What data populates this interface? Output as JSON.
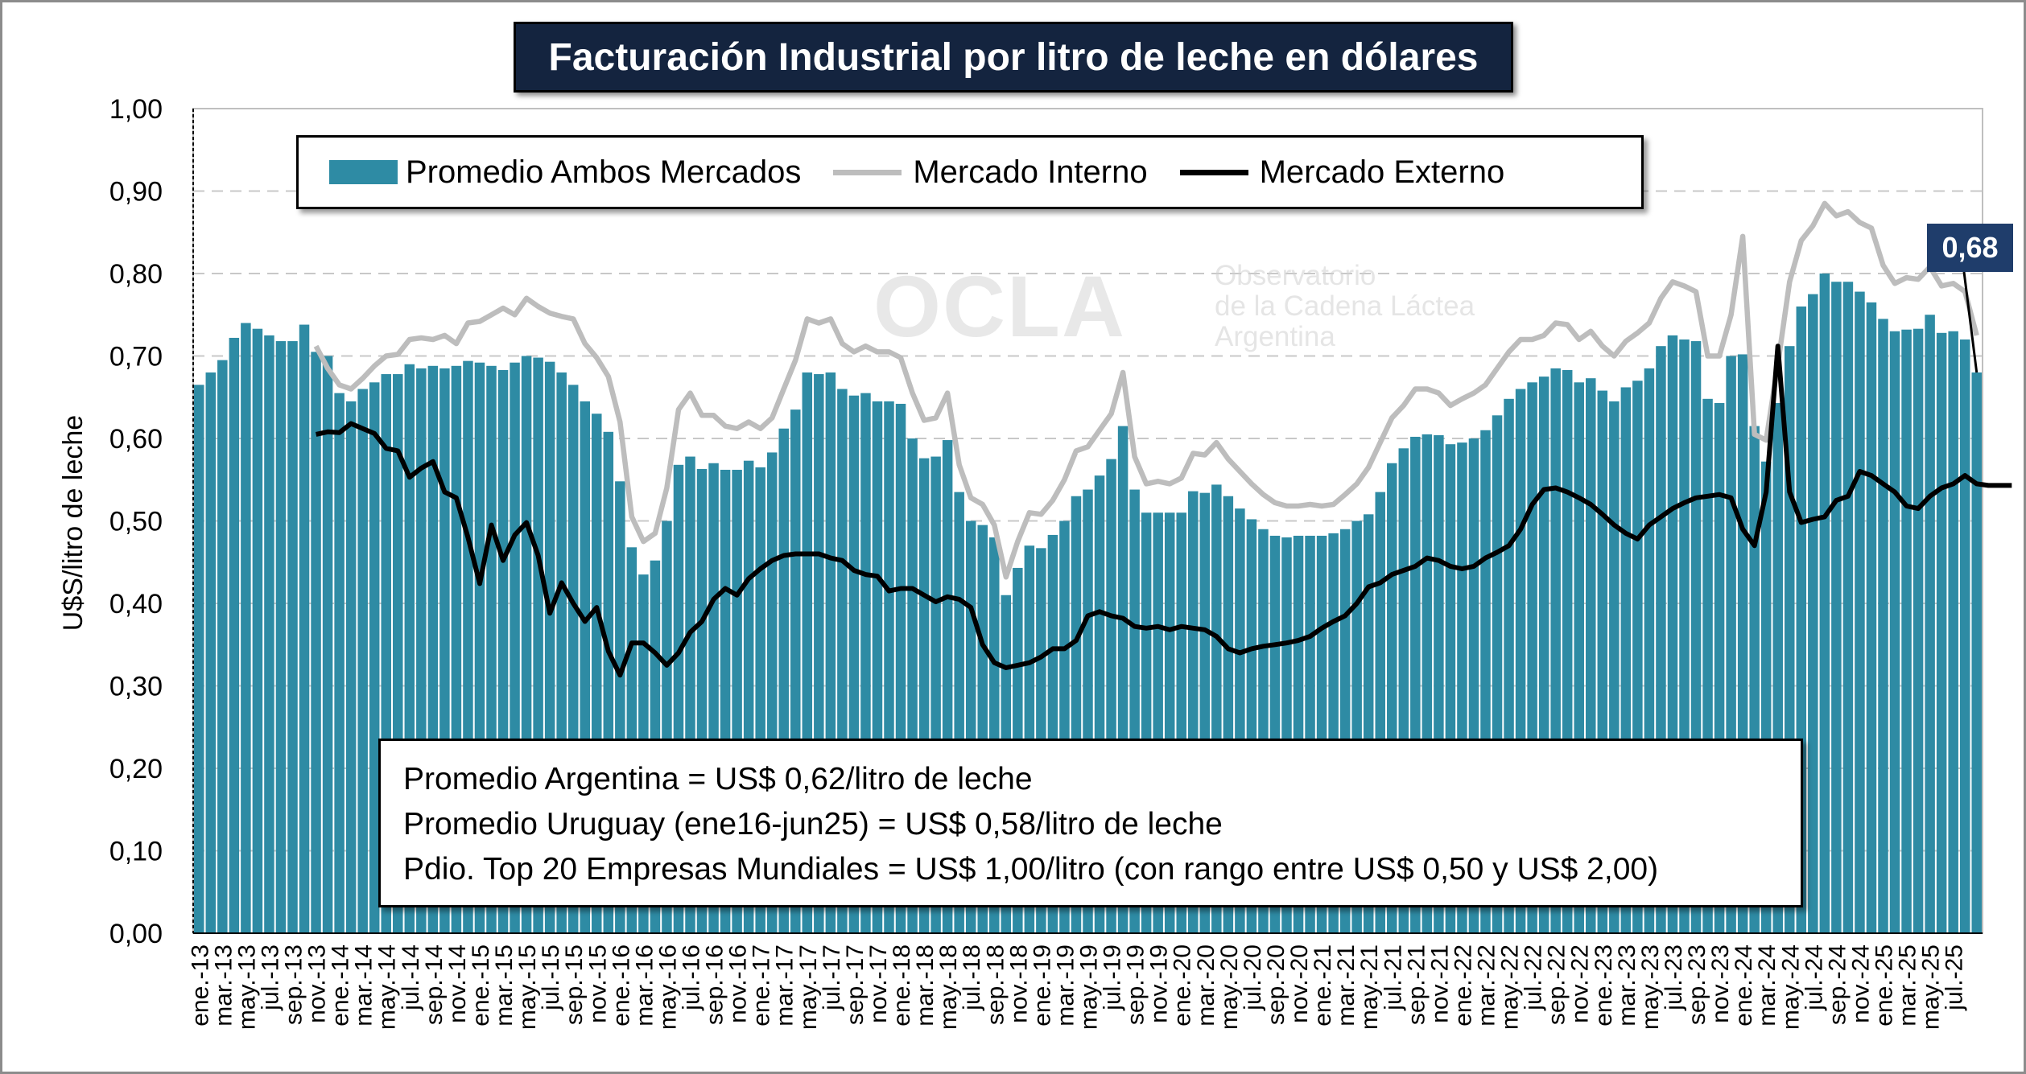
{
  "chart_data": {
    "type": "bar",
    "title": "Facturación Industrial por litro de leche en dólares",
    "ylabel": "U$S/litro de leche",
    "xlabel": "",
    "ylim": [
      0,
      1
    ],
    "yticks": [
      "0,00",
      "0,10",
      "0,20",
      "0,30",
      "0,40",
      "0,50",
      "0,60",
      "0,70",
      "0,80",
      "0,90",
      "1,00"
    ],
    "grid": "horizontal-dashed",
    "legend_position": "top",
    "start_month": "ene.-13",
    "x_tick_labels": [
      "ene.-13",
      "mar.-13",
      "may.-13",
      "jul.-13",
      "sep.-13",
      "nov.-13",
      "ene.-14",
      "mar.-14",
      "may.-14",
      "jul.-14",
      "sep.-14",
      "nov.-14",
      "ene.-15",
      "mar.-15",
      "may.-15",
      "jul.-15",
      "sep.-15",
      "nov.-15",
      "ene.-16",
      "mar.-16",
      "may.-16",
      "jul.-16",
      "sep.-16",
      "nov.-16",
      "ene.-17",
      "mar.-17",
      "may.-17",
      "jul.-17",
      "sep.-17",
      "nov.-17",
      "ene.-18",
      "mar.-18",
      "may.-18",
      "jul.-18",
      "sep.-18",
      "nov.-18",
      "ene.-19",
      "mar.-19",
      "may.-19",
      "jul.-19",
      "sep.-19",
      "nov.-19",
      "ene.-20",
      "mar.-20",
      "may.-20",
      "jul.-20",
      "sep.-20",
      "nov.-20",
      "ene.-21",
      "mar.-21",
      "may.-21",
      "jul.-21",
      "sep.-21",
      "nov.-21",
      "ene.-22",
      "mar.-22",
      "may.-22",
      "jul.-22",
      "sep.-22",
      "nov.-22",
      "ene.-23",
      "mar.-23",
      "may.-23",
      "jul.-23",
      "sep.-23",
      "nov.-23",
      "ene.-24",
      "mar.-24",
      "may.-24",
      "jul.-24",
      "sep.-24",
      "nov.-24",
      "ene.-25",
      "mar.-25",
      "may.-25",
      "jul.-25"
    ],
    "series": [
      {
        "name": "Promedio Ambos Mercados",
        "kind": "bar",
        "color": "#2e8ba4",
        "values": [
          0.665,
          0.68,
          0.695,
          0.722,
          0.74,
          0.733,
          0.725,
          0.718,
          0.718,
          0.738,
          0.705,
          0.7,
          0.655,
          0.645,
          0.66,
          0.668,
          0.678,
          0.678,
          0.69,
          0.685,
          0.688,
          0.685,
          0.688,
          0.694,
          0.692,
          0.688,
          0.683,
          0.692,
          0.7,
          0.698,
          0.693,
          0.68,
          0.665,
          0.645,
          0.63,
          0.608,
          0.548,
          0.468,
          0.435,
          0.452,
          0.5,
          0.568,
          0.578,
          0.563,
          0.57,
          0.562,
          0.562,
          0.573,
          0.565,
          0.583,
          0.612,
          0.635,
          0.68,
          0.678,
          0.68,
          0.66,
          0.652,
          0.655,
          0.645,
          0.645,
          0.642,
          0.6,
          0.576,
          0.578,
          0.598,
          0.535,
          0.5,
          0.495,
          0.48,
          0.41,
          0.443,
          0.47,
          0.467,
          0.483,
          0.5,
          0.53,
          0.538,
          0.555,
          0.575,
          0.615,
          0.538,
          0.51,
          0.51,
          0.51,
          0.51,
          0.536,
          0.534,
          0.544,
          0.53,
          0.515,
          0.502,
          0.49,
          0.482,
          0.48,
          0.482,
          0.482,
          0.482,
          0.485,
          0.49,
          0.5,
          0.508,
          0.535,
          0.57,
          0.588,
          0.602,
          0.605,
          0.604,
          0.593,
          0.595,
          0.6,
          0.61,
          0.628,
          0.648,
          0.66,
          0.668,
          0.675,
          0.685,
          0.683,
          0.668,
          0.673,
          0.658,
          0.645,
          0.662,
          0.67,
          0.685,
          0.712,
          0.725,
          0.72,
          0.718,
          0.648,
          0.643,
          0.7,
          0.702,
          0.615,
          0.572,
          0.643,
          0.712,
          0.76,
          0.775,
          0.8,
          0.79,
          0.79,
          0.778,
          0.765,
          0.745,
          0.73,
          0.732,
          0.733,
          0.75,
          0.728,
          0.73,
          0.72,
          0.68
        ]
      },
      {
        "name": "Mercado Interno",
        "kind": "line",
        "color": "#bdbdbd",
        "values": [
          null,
          null,
          null,
          null,
          null,
          null,
          null,
          null,
          null,
          null,
          0.712,
          0.685,
          0.665,
          0.66,
          0.673,
          0.688,
          0.7,
          0.702,
          0.72,
          0.722,
          0.72,
          0.725,
          0.715,
          0.74,
          0.742,
          0.75,
          0.758,
          0.75,
          0.77,
          0.76,
          0.752,
          0.748,
          0.745,
          0.715,
          0.698,
          0.675,
          0.62,
          0.505,
          0.475,
          0.485,
          0.54,
          0.635,
          0.655,
          0.628,
          0.628,
          0.615,
          0.612,
          0.62,
          0.612,
          0.625,
          0.66,
          0.695,
          0.745,
          0.74,
          0.745,
          0.715,
          0.705,
          0.712,
          0.705,
          0.705,
          0.698,
          0.655,
          0.622,
          0.625,
          0.655,
          0.568,
          0.528,
          0.52,
          0.495,
          0.432,
          0.475,
          0.51,
          0.508,
          0.525,
          0.55,
          0.585,
          0.59,
          0.61,
          0.63,
          0.68,
          0.578,
          0.545,
          0.548,
          0.545,
          0.552,
          0.582,
          0.58,
          0.595,
          0.575,
          0.56,
          0.545,
          0.532,
          0.522,
          0.518,
          0.518,
          0.52,
          0.518,
          0.52,
          0.532,
          0.545,
          0.565,
          0.595,
          0.625,
          0.64,
          0.66,
          0.66,
          0.655,
          0.64,
          0.648,
          0.655,
          0.665,
          0.685,
          0.705,
          0.72,
          0.72,
          0.725,
          0.74,
          0.738,
          0.72,
          0.73,
          0.712,
          0.7,
          0.718,
          0.728,
          0.74,
          0.77,
          0.79,
          0.785,
          0.778,
          0.7,
          0.7,
          0.75,
          0.845,
          0.605,
          0.598,
          0.69,
          0.79,
          0.84,
          0.858,
          0.885,
          0.87,
          0.875,
          0.862,
          0.855,
          0.81,
          0.788,
          0.795,
          0.793,
          0.808,
          0.785,
          0.788,
          0.778,
          0.725
        ]
      },
      {
        "name": "Mercado Externo",
        "kind": "line",
        "color": "#000000",
        "values": [
          null,
          null,
          null,
          null,
          null,
          null,
          null,
          null,
          null,
          null,
          0.605,
          0.608,
          0.607,
          0.618,
          0.612,
          0.606,
          0.588,
          0.585,
          0.553,
          0.564,
          0.572,
          0.535,
          0.528,
          0.48,
          0.424,
          0.495,
          0.452,
          0.483,
          0.498,
          0.458,
          0.388,
          0.425,
          0.4,
          0.378,
          0.395,
          0.342,
          0.313,
          0.352,
          0.352,
          0.34,
          0.325,
          0.34,
          0.365,
          0.378,
          0.405,
          0.418,
          0.41,
          0.43,
          0.442,
          0.452,
          0.458,
          0.46,
          0.46,
          0.46,
          0.455,
          0.452,
          0.44,
          0.435,
          0.433,
          0.415,
          0.418,
          0.418,
          0.41,
          0.402,
          0.408,
          0.405,
          0.395,
          0.35,
          0.328,
          0.322,
          0.325,
          0.328,
          0.335,
          0.345,
          0.345,
          0.355,
          0.385,
          0.39,
          0.385,
          0.382,
          0.372,
          0.37,
          0.372,
          0.368,
          0.372,
          0.37,
          0.368,
          0.36,
          0.345,
          0.34,
          0.345,
          0.348,
          0.35,
          0.352,
          0.355,
          0.36,
          0.37,
          0.378,
          0.385,
          0.4,
          0.42,
          0.425,
          0.435,
          0.44,
          0.445,
          0.455,
          0.452,
          0.445,
          0.442,
          0.445,
          0.455,
          0.462,
          0.47,
          0.49,
          0.52,
          0.538,
          0.54,
          0.535,
          0.528,
          0.52,
          0.508,
          0.495,
          0.485,
          0.478,
          0.495,
          0.505,
          0.515,
          0.522,
          0.528,
          0.53,
          0.532,
          0.528,
          0.49,
          0.47,
          0.535,
          0.712,
          0.535,
          0.498,
          0.502,
          0.505,
          0.525,
          0.53,
          0.56,
          0.555,
          0.545,
          0.535,
          0.518,
          0.515,
          0.53,
          0.54,
          0.545,
          0.555,
          0.545,
          0.543,
          0.543,
          0.543
        ]
      }
    ],
    "annotations": [
      {
        "text": "0,68",
        "target": "last bar"
      }
    ]
  },
  "legend": {
    "bar_label": "Promedio Ambos Mercados",
    "interno_label": "Mercado Interno",
    "externo_label": "Mercado Externo"
  },
  "notes": {
    "line1": "Promedio Argentina = US$ 0,62/litro de leche",
    "line2": "Promedio Uruguay (ene16-jun25) = US$ 0,58/litro de leche",
    "line3": "Pdio. Top 20 Empresas Mundiales = US$ 1,00/litro (con rango entre US$ 0,50 y US$ 2,00)"
  },
  "callout": "0,68",
  "watermark": {
    "logo": "OCLA",
    "line1": "Observatorio",
    "line2": "de la Cadena Láctea",
    "line3": "Argentina"
  }
}
